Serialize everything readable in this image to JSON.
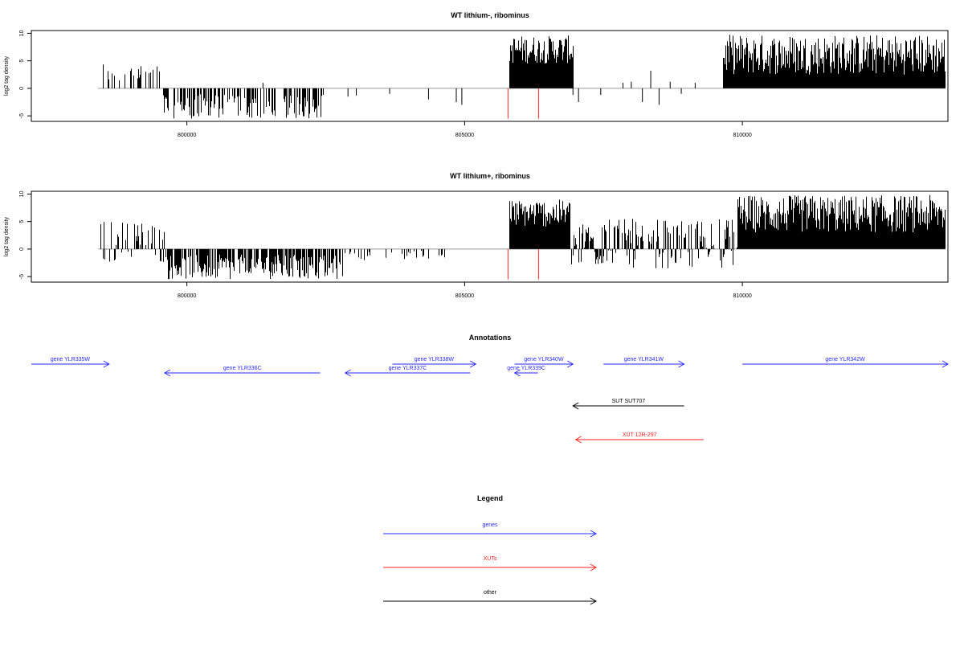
{
  "colors": {
    "bars": "#000000",
    "baseline": "#9a9a9a",
    "markers": "#ff2020",
    "genes": "#2a2aff",
    "xuts": "#ff2020",
    "other": "#000000"
  },
  "chart_data": [
    {
      "type": "bar",
      "title": "WT lithium-, ribominus",
      "ylabel": "log2 tag density",
      "xlim": [
        797200,
        813700
      ],
      "ylim": [
        -6,
        10.5
      ],
      "y_ticks": [
        "10",
        "5",
        "0",
        "-5"
      ],
      "x_ticks": [
        "800000",
        "805000",
        "810000"
      ],
      "marker_lines": [
        805780,
        806330
      ],
      "segments": [
        {
          "start": 798400,
          "end": 799550,
          "value_range": [
            0.8,
            4.8
          ],
          "density": 0.3
        },
        {
          "start": 799550,
          "end": 802450,
          "value_range": [
            -5.5,
            -1.0
          ],
          "density": 0.55
        },
        {
          "start": 805800,
          "end": 806950,
          "value_range": [
            4.5,
            9.6
          ],
          "density": 1.0
        },
        {
          "start": 809650,
          "end": 813650,
          "value_range": [
            2.5,
            9.8
          ],
          "density": 1.0
        }
      ],
      "spikes": [
        [
          801370,
          1
        ],
        [
          802900,
          -1.5
        ],
        [
          803050,
          -1.3
        ],
        [
          803650,
          -1
        ],
        [
          804350,
          -2
        ],
        [
          804850,
          -2.5
        ],
        [
          804950,
          -3
        ],
        [
          806950,
          -1.2
        ],
        [
          807050,
          -2.5
        ],
        [
          807450,
          -1.2
        ],
        [
          807850,
          1
        ],
        [
          808000,
          1.2
        ],
        [
          808200,
          -2.5
        ],
        [
          808350,
          3.2
        ],
        [
          808500,
          -3
        ],
        [
          808700,
          1.2
        ],
        [
          808900,
          -1
        ],
        [
          809150,
          1
        ]
      ]
    },
    {
      "type": "bar",
      "title": "WT lithium+, ribominus",
      "ylabel": "log2 tag density",
      "xlim": [
        797200,
        813700
      ],
      "ylim": [
        -6,
        10.5
      ],
      "y_ticks": [
        "10",
        "5",
        "0",
        "-5"
      ],
      "x_ticks": [
        "800000",
        "805000",
        "810000"
      ],
      "marker_lines": [
        805780,
        806330
      ],
      "segments": [
        {
          "start": 798400,
          "end": 799600,
          "value_range": [
            -2.5,
            5.2
          ],
          "density": 0.45
        },
        {
          "start": 799600,
          "end": 802800,
          "value_range": [
            -5.5,
            -1.0
          ],
          "density": 0.75
        },
        {
          "start": 802800,
          "end": 804700,
          "value_range": [
            -2.0,
            -0.3
          ],
          "density": 0.15
        },
        {
          "start": 805800,
          "end": 806900,
          "value_range": [
            4.0,
            9.0
          ],
          "density": 1.0
        },
        {
          "start": 806900,
          "end": 807600,
          "value_range": [
            -3.5,
            5.5
          ],
          "density": 0.8
        },
        {
          "start": 807600,
          "end": 809900,
          "value_range": [
            -3.5,
            5.5
          ],
          "density": 0.7
        },
        {
          "start": 809900,
          "end": 813650,
          "value_range": [
            3.0,
            9.8
          ],
          "density": 1.0
        }
      ],
      "spikes": []
    }
  ],
  "annotations": {
    "title": "Annotations",
    "items": [
      {
        "label": "gene YLR335W",
        "from": 797200,
        "to": 798600,
        "row": 0,
        "kind": "genes"
      },
      {
        "label": "gene YLR336C",
        "from": 802400,
        "to": 799600,
        "row": 1,
        "kind": "genes"
      },
      {
        "label": "gene YLR337C",
        "from": 805100,
        "to": 802850,
        "row": 1,
        "kind": "genes"
      },
      {
        "label": "gene YLR338W",
        "from": 803700,
        "to": 805200,
        "row": 0,
        "kind": "genes"
      },
      {
        "label": "gene YLR339C",
        "from": 806320,
        "to": 805900,
        "row": 1,
        "kind": "genes"
      },
      {
        "label": "gene YLR340W",
        "from": 805900,
        "to": 806950,
        "row": 0,
        "kind": "genes"
      },
      {
        "label": "gene YLR341W",
        "from": 807500,
        "to": 808950,
        "row": 0,
        "kind": "genes"
      },
      {
        "label": "gene YLR342W",
        "from": 810000,
        "to": 813700,
        "row": 0,
        "kind": "genes"
      },
      {
        "label": "SUT SUT707",
        "from": 808950,
        "to": 806950,
        "row": 2,
        "kind": "other"
      },
      {
        "label": "XUT 12R-297",
        "from": 809300,
        "to": 807000,
        "row": 3,
        "kind": "xuts"
      }
    ]
  },
  "legend": {
    "title": "Legend",
    "items": [
      {
        "label": "genes",
        "kind": "genes"
      },
      {
        "label": "XUTs",
        "kind": "xuts"
      },
      {
        "label": "other",
        "kind": "other"
      }
    ]
  }
}
